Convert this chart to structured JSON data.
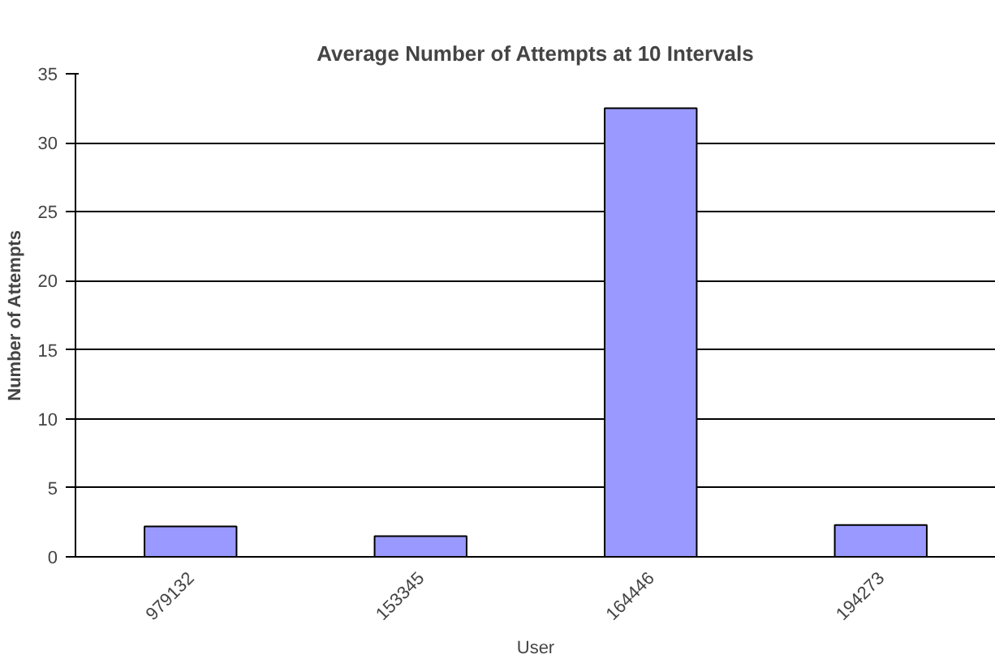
{
  "chart_data": {
    "type": "bar",
    "title": "Average Number of Attempts at 10 Intervals",
    "xlabel": "User",
    "ylabel": "Number of Attempts",
    "categories": [
      "979132",
      "153345",
      "164446",
      "194273"
    ],
    "values": [
      2.2,
      1.5,
      32.5,
      2.3
    ],
    "color": "#9999ff",
    "ylim": [
      0,
      35
    ],
    "yticks": [
      0,
      5,
      10,
      15,
      20,
      25,
      30,
      35
    ],
    "grid": "y"
  }
}
